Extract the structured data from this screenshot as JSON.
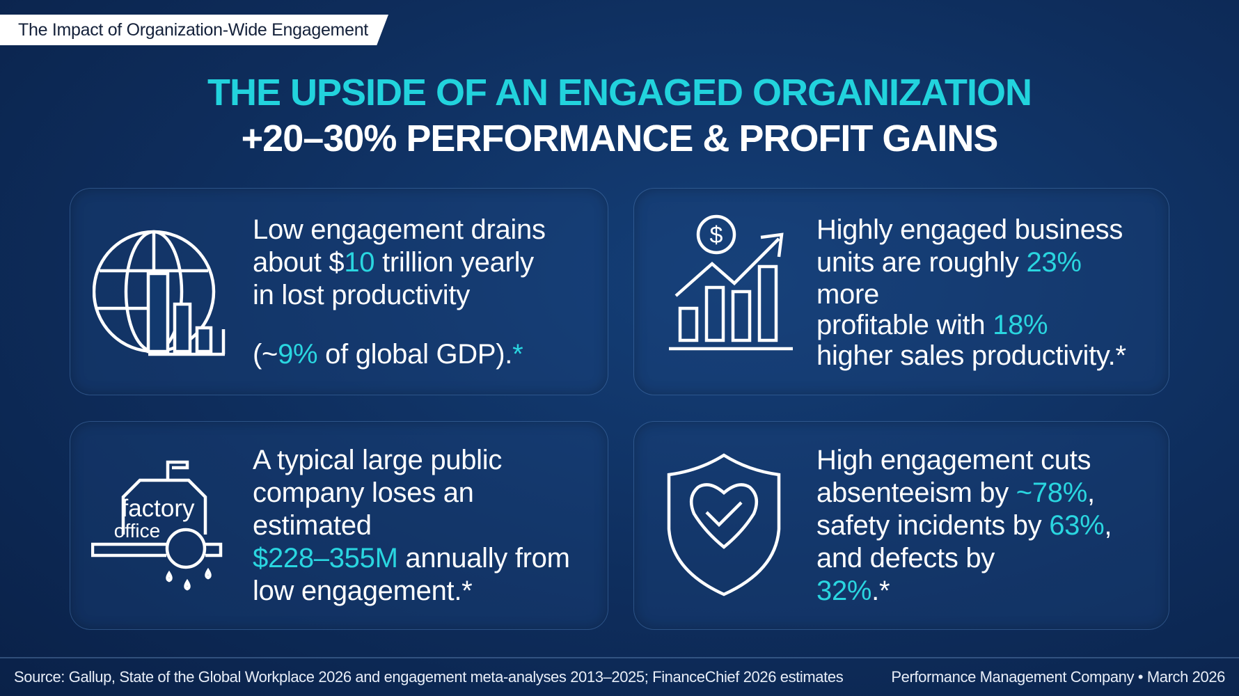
{
  "header_tag": "The Impact of Organization-Wide Engagement",
  "title": {
    "line1": "THE UPSIDE OF AN ENGAGED ORGANIZATION",
    "line2": "+20–30% PERFORMANCE & PROFIT GAINS"
  },
  "colors": {
    "accent": "#22d3dd",
    "background": "#0e2d5c",
    "text": "#ffffff"
  },
  "cards": [
    {
      "icon": "globe-bar-chart-icon",
      "l1": "Low engagement drains",
      "l2a": "about $",
      "l2b": "10",
      "l2c": " trillion yearly",
      "l3": "in lost productivity",
      "l4a": "(~",
      "l4b": "9%",
      "l4c": " of global GDP).",
      "l4d": "*"
    },
    {
      "icon": "dollar-growth-chart-icon",
      "l1": "Highly engaged business",
      "l2a": "units are roughly ",
      "l2b": "23%",
      "l3": "more",
      "l4a": "profitable with ",
      "l4b": "18%",
      "l5": "higher sales productivity.*"
    },
    {
      "icon": "factory-office-icon",
      "icon_label_1": "factory",
      "icon_label_2": "office",
      "l1": "A typical large public",
      "l2": "company loses an",
      "l3": "estimated",
      "l4a": "$228–355M",
      "l4b": " annually from",
      "l5": "low engagement.*"
    },
    {
      "icon": "shield-heart-check-icon",
      "l1": "High engagement cuts",
      "l2a": "absenteeism by ",
      "l2b": "~78%",
      "l2c": ",",
      "l3a": "safety incidents by ",
      "l3b": "63%",
      "l3c": ",",
      "l4": "and defects by",
      "l5a": "32%",
      "l5b": ".*"
    }
  ],
  "footer": {
    "source": "Source: Gallup, State of the Global Workplace 2026 and engagement meta-analyses 2013–2025; FinanceChief 2026 estimates",
    "credit": "Performance Management Company • March 2026"
  }
}
